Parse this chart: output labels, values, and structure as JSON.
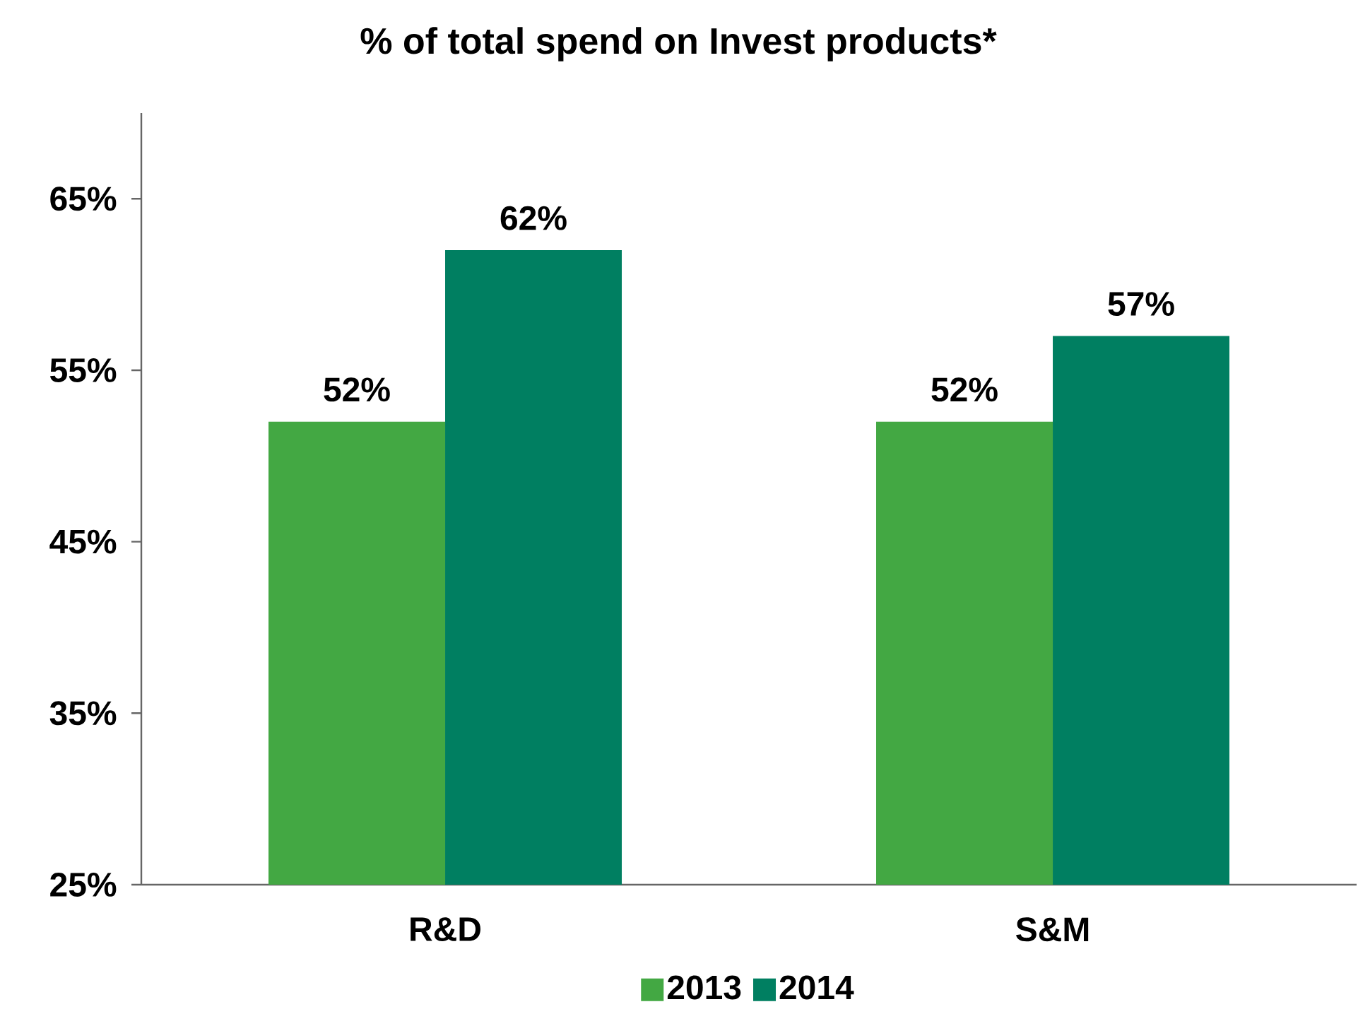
{
  "chart_data": {
    "type": "bar",
    "title": "% of total spend on Invest products*",
    "categories": [
      "R&D",
      "S&M"
    ],
    "series": [
      {
        "name": "2013",
        "color": "#43a843",
        "values": [
          52,
          52
        ],
        "value_labels": [
          "52%",
          "52%"
        ]
      },
      {
        "name": "2014",
        "color": "#007f61",
        "values": [
          62,
          57
        ],
        "value_labels": [
          "62%",
          "57%"
        ]
      }
    ],
    "ylim": [
      25,
      70
    ],
    "yticks": [
      {
        "value": 25,
        "label": "25%"
      },
      {
        "value": 35,
        "label": "35%"
      },
      {
        "value": 45,
        "label": "45%"
      },
      {
        "value": 55,
        "label": "55%"
      },
      {
        "value": 65,
        "label": "65%"
      }
    ],
    "grid": false,
    "legend": "bottom"
  }
}
